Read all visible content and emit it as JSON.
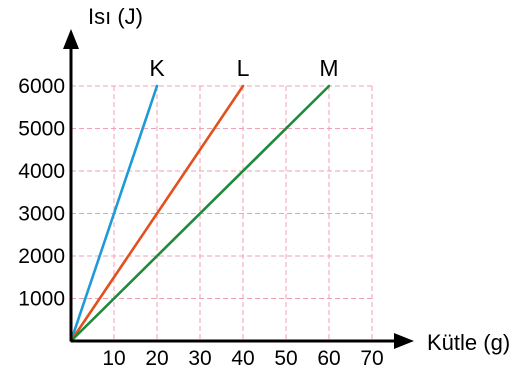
{
  "chart_data": {
    "type": "line",
    "xlabel": "Kütle (g)",
    "ylabel": "Isı (J)",
    "x_ticks": [
      "10",
      "20",
      "30",
      "40",
      "50",
      "60",
      "70"
    ],
    "y_ticks": [
      "1000",
      "2000",
      "3000",
      "4000",
      "5000",
      "6000"
    ],
    "xlim": [
      0,
      70
    ],
    "ylim": [
      0,
      6000
    ],
    "grid": true,
    "grid_color": "#f2a0b4",
    "axis_color": "#000000",
    "series": [
      {
        "name": "K",
        "color": "#1e9ad6",
        "x": [
          0,
          20
        ],
        "y": [
          0,
          6000
        ]
      },
      {
        "name": "L",
        "color": "#e2501e",
        "x": [
          0,
          40
        ],
        "y": [
          0,
          6000
        ]
      },
      {
        "name": "M",
        "color": "#1f8a3c",
        "x": [
          0,
          60
        ],
        "y": [
          0,
          6000
        ]
      }
    ]
  }
}
